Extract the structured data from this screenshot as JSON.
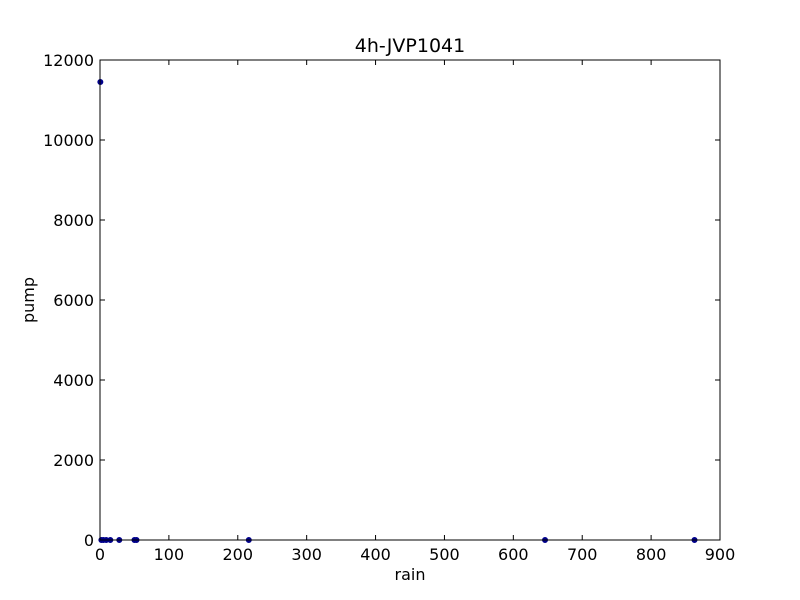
{
  "chart_data": {
    "type": "scatter",
    "title": "4h-JVP1041",
    "xlabel": "rain",
    "ylabel": "pump",
    "xlim": [
      0,
      900
    ],
    "ylim": [
      0,
      12000
    ],
    "xticks": [
      0,
      100,
      200,
      300,
      400,
      500,
      600,
      700,
      800,
      900
    ],
    "yticks": [
      0,
      2000,
      4000,
      6000,
      8000,
      10000,
      12000
    ],
    "grid": false,
    "marker_color": "#00008b",
    "series": [
      {
        "points": [
          {
            "x": 0.5,
            "y": 11450
          },
          {
            "x": 2,
            "y": 0
          },
          {
            "x": 5,
            "y": 0
          },
          {
            "x": 9,
            "y": 0
          },
          {
            "x": 15,
            "y": 0
          },
          {
            "x": 28,
            "y": 0
          },
          {
            "x": 50,
            "y": 0
          },
          {
            "x": 53,
            "y": 0
          },
          {
            "x": 216,
            "y": 0
          },
          {
            "x": 646,
            "y": 0
          },
          {
            "x": 863,
            "y": 0
          }
        ]
      }
    ]
  }
}
